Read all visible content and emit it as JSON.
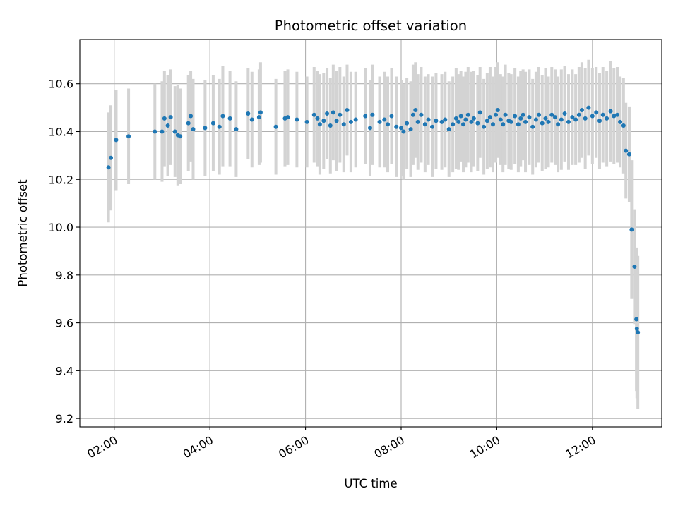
{
  "chart_data": {
    "type": "scatter",
    "title": "Photometric offset variation",
    "xlabel": "UTC time",
    "ylabel": "Photometric offset",
    "xlim_hours": [
      1.28,
      13.45
    ],
    "ylim": [
      9.165,
      10.785
    ],
    "x_ticks": [
      {
        "label": "02:00",
        "hour": 2
      },
      {
        "label": "04:00",
        "hour": 4
      },
      {
        "label": "06:00",
        "hour": 6
      },
      {
        "label": "08:00",
        "hour": 8
      },
      {
        "label": "10:00",
        "hour": 10
      },
      {
        "label": "12:00",
        "hour": 12
      }
    ],
    "y_ticks": [
      {
        "label": "9.2",
        "value": 9.2
      },
      {
        "label": "9.4",
        "value": 9.4
      },
      {
        "label": "9.6",
        "value": 9.6
      },
      {
        "label": "9.8",
        "value": 9.8
      },
      {
        "label": "10.0",
        "value": 10.0
      },
      {
        "label": "10.2",
        "value": 10.2
      },
      {
        "label": "10.4",
        "value": 10.4
      },
      {
        "label": "10.6",
        "value": 10.6
      }
    ],
    "grid": true,
    "colors": {
      "points": "#1f77b4",
      "errorbars": "#d3d3d3",
      "grid": "#b0b0b0",
      "axes": "#000000"
    },
    "series": [
      {
        "name": "offset",
        "hours": [
          1.88,
          1.93,
          2.04,
          2.3,
          2.85,
          3.0,
          3.05,
          3.12,
          3.18,
          3.27,
          3.33,
          3.38,
          3.55,
          3.6,
          3.65,
          3.9,
          4.07,
          4.2,
          4.27,
          4.42,
          4.55,
          4.8,
          4.88,
          5.03,
          5.06,
          5.38,
          5.57,
          5.63,
          5.82,
          6.03,
          6.18,
          6.25,
          6.3,
          6.38,
          6.45,
          6.52,
          6.58,
          6.65,
          6.72,
          6.8,
          6.87,
          6.95,
          7.05,
          7.25,
          7.35,
          7.4,
          7.55,
          7.65,
          7.72,
          7.8,
          7.9,
          8.0,
          8.05,
          8.12,
          8.2,
          8.25,
          8.3,
          8.35,
          8.42,
          8.5,
          8.57,
          8.65,
          8.73,
          8.85,
          8.92,
          9.0,
          9.08,
          9.15,
          9.2,
          9.25,
          9.3,
          9.35,
          9.4,
          9.47,
          9.52,
          9.6,
          9.65,
          9.73,
          9.8,
          9.86,
          9.92,
          9.98,
          10.02,
          10.08,
          10.13,
          10.18,
          10.25,
          10.3,
          10.38,
          10.45,
          10.5,
          10.55,
          10.6,
          10.68,
          10.75,
          10.82,
          10.88,
          10.95,
          11.02,
          11.08,
          11.15,
          11.22,
          11.28,
          11.35,
          11.42,
          11.5,
          11.58,
          11.65,
          11.72,
          11.78,
          11.85,
          11.92,
          12.0,
          12.08,
          12.15,
          12.22,
          12.3,
          12.38,
          12.45,
          12.52,
          12.58,
          12.65,
          12.7,
          12.77,
          12.82,
          12.88,
          12.92,
          12.93,
          12.95
        ],
        "values": [
          10.25,
          10.29,
          10.365,
          10.38,
          10.4,
          10.4,
          10.455,
          10.425,
          10.46,
          10.4,
          10.385,
          10.38,
          10.435,
          10.465,
          10.41,
          10.415,
          10.435,
          10.42,
          10.465,
          10.455,
          10.41,
          10.475,
          10.45,
          10.46,
          10.48,
          10.42,
          10.455,
          10.46,
          10.45,
          10.44,
          10.47,
          10.455,
          10.43,
          10.445,
          10.475,
          10.425,
          10.48,
          10.445,
          10.47,
          10.43,
          10.49,
          10.44,
          10.45,
          10.465,
          10.415,
          10.47,
          10.44,
          10.45,
          10.43,
          10.465,
          10.42,
          10.415,
          10.4,
          10.435,
          10.41,
          10.47,
          10.49,
          10.44,
          10.47,
          10.43,
          10.45,
          10.42,
          10.445,
          10.44,
          10.45,
          10.41,
          10.43,
          10.455,
          10.44,
          10.465,
          10.43,
          10.45,
          10.47,
          10.44,
          10.455,
          10.435,
          10.48,
          10.42,
          10.445,
          10.46,
          10.43,
          10.47,
          10.49,
          10.45,
          10.43,
          10.47,
          10.445,
          10.44,
          10.465,
          10.43,
          10.455,
          10.47,
          10.44,
          10.46,
          10.42,
          10.45,
          10.47,
          10.435,
          10.455,
          10.44,
          10.47,
          10.46,
          10.43,
          10.45,
          10.475,
          10.44,
          10.46,
          10.45,
          10.47,
          10.49,
          10.455,
          10.5,
          10.465,
          10.48,
          10.445,
          10.47,
          10.455,
          10.485,
          10.465,
          10.47,
          10.44,
          10.425,
          10.32,
          10.305,
          9.99,
          9.835,
          9.615,
          9.575,
          9.56
        ],
        "errors": [
          0.23,
          0.22,
          0.21,
          0.2,
          0.2,
          0.21,
          0.2,
          0.21,
          0.2,
          0.19,
          0.21,
          0.2,
          0.2,
          0.19,
          0.21,
          0.2,
          0.2,
          0.2,
          0.21,
          0.2,
          0.2,
          0.19,
          0.2,
          0.2,
          0.21,
          0.2,
          0.2,
          0.2,
          0.2,
          0.19,
          0.2,
          0.2,
          0.21,
          0.2,
          0.19,
          0.2,
          0.2,
          0.21,
          0.2,
          0.2,
          0.19,
          0.21,
          0.2,
          0.2,
          0.2,
          0.21,
          0.19,
          0.2,
          0.2,
          0.2,
          0.21,
          0.2,
          0.2,
          0.19,
          0.2,
          0.21,
          0.2,
          0.2,
          0.2,
          0.2,
          0.19,
          0.21,
          0.2,
          0.2,
          0.2,
          0.2,
          0.2,
          0.21,
          0.2,
          0.19,
          0.2,
          0.2,
          0.2,
          0.21,
          0.2,
          0.2,
          0.19,
          0.2,
          0.2,
          0.21,
          0.2,
          0.2,
          0.2,
          0.19,
          0.2,
          0.21,
          0.2,
          0.2,
          0.2,
          0.2,
          0.2,
          0.19,
          0.21,
          0.2,
          0.2,
          0.2,
          0.2,
          0.2,
          0.21,
          0.19,
          0.2,
          0.2,
          0.2,
          0.21,
          0.2,
          0.2,
          0.2,
          0.19,
          0.2,
          0.2,
          0.21,
          0.2,
          0.2,
          0.19,
          0.2,
          0.2,
          0.2,
          0.21,
          0.2,
          0.2,
          0.19,
          0.2,
          0.2,
          0.2,
          0.29,
          0.24,
          0.3,
          0.29,
          0.32
        ]
      }
    ]
  }
}
